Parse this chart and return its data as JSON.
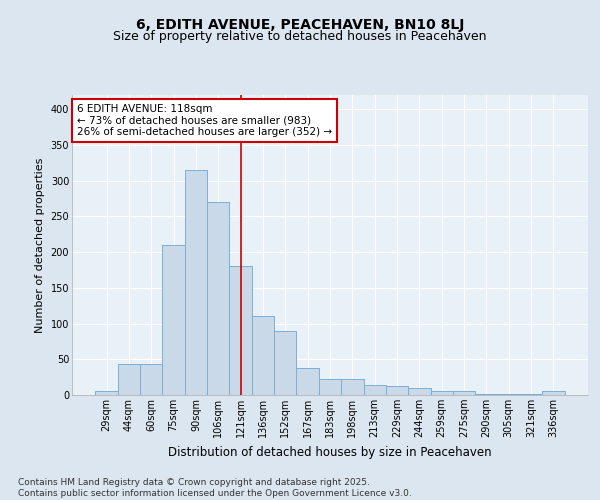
{
  "title": "6, EDITH AVENUE, PEACEHAVEN, BN10 8LJ",
  "subtitle": "Size of property relative to detached houses in Peacehaven",
  "xlabel": "Distribution of detached houses by size in Peacehaven",
  "ylabel": "Number of detached properties",
  "categories": [
    "29sqm",
    "44sqm",
    "60sqm",
    "75sqm",
    "90sqm",
    "106sqm",
    "121sqm",
    "136sqm",
    "152sqm",
    "167sqm",
    "183sqm",
    "198sqm",
    "213sqm",
    "229sqm",
    "244sqm",
    "259sqm",
    "275sqm",
    "290sqm",
    "305sqm",
    "321sqm",
    "336sqm"
  ],
  "values": [
    5,
    44,
    44,
    210,
    315,
    270,
    180,
    110,
    90,
    38,
    22,
    22,
    14,
    13,
    10,
    5,
    6,
    2,
    2,
    1,
    5
  ],
  "bar_color": "#c9d9e8",
  "bar_edge_color": "#7bafd4",
  "vline_x": 6.0,
  "vline_color": "#cc0000",
  "annotation_text": "6 EDITH AVENUE: 118sqm\n← 73% of detached houses are smaller (983)\n26% of semi-detached houses are larger (352) →",
  "annotation_box_color": "#ffffff",
  "annotation_edge_color": "#cc0000",
  "ylim": [
    0,
    420
  ],
  "yticks": [
    0,
    50,
    100,
    150,
    200,
    250,
    300,
    350,
    400
  ],
  "background_color": "#dce6f0",
  "plot_bg_color": "#e8f0f8",
  "grid_color": "#ffffff",
  "footer_text": "Contains HM Land Registry data © Crown copyright and database right 2025.\nContains public sector information licensed under the Open Government Licence v3.0.",
  "title_fontsize": 10,
  "subtitle_fontsize": 9,
  "xlabel_fontsize": 8.5,
  "ylabel_fontsize": 8,
  "tick_fontsize": 7,
  "annotation_fontsize": 7.5,
  "footer_fontsize": 6.5
}
